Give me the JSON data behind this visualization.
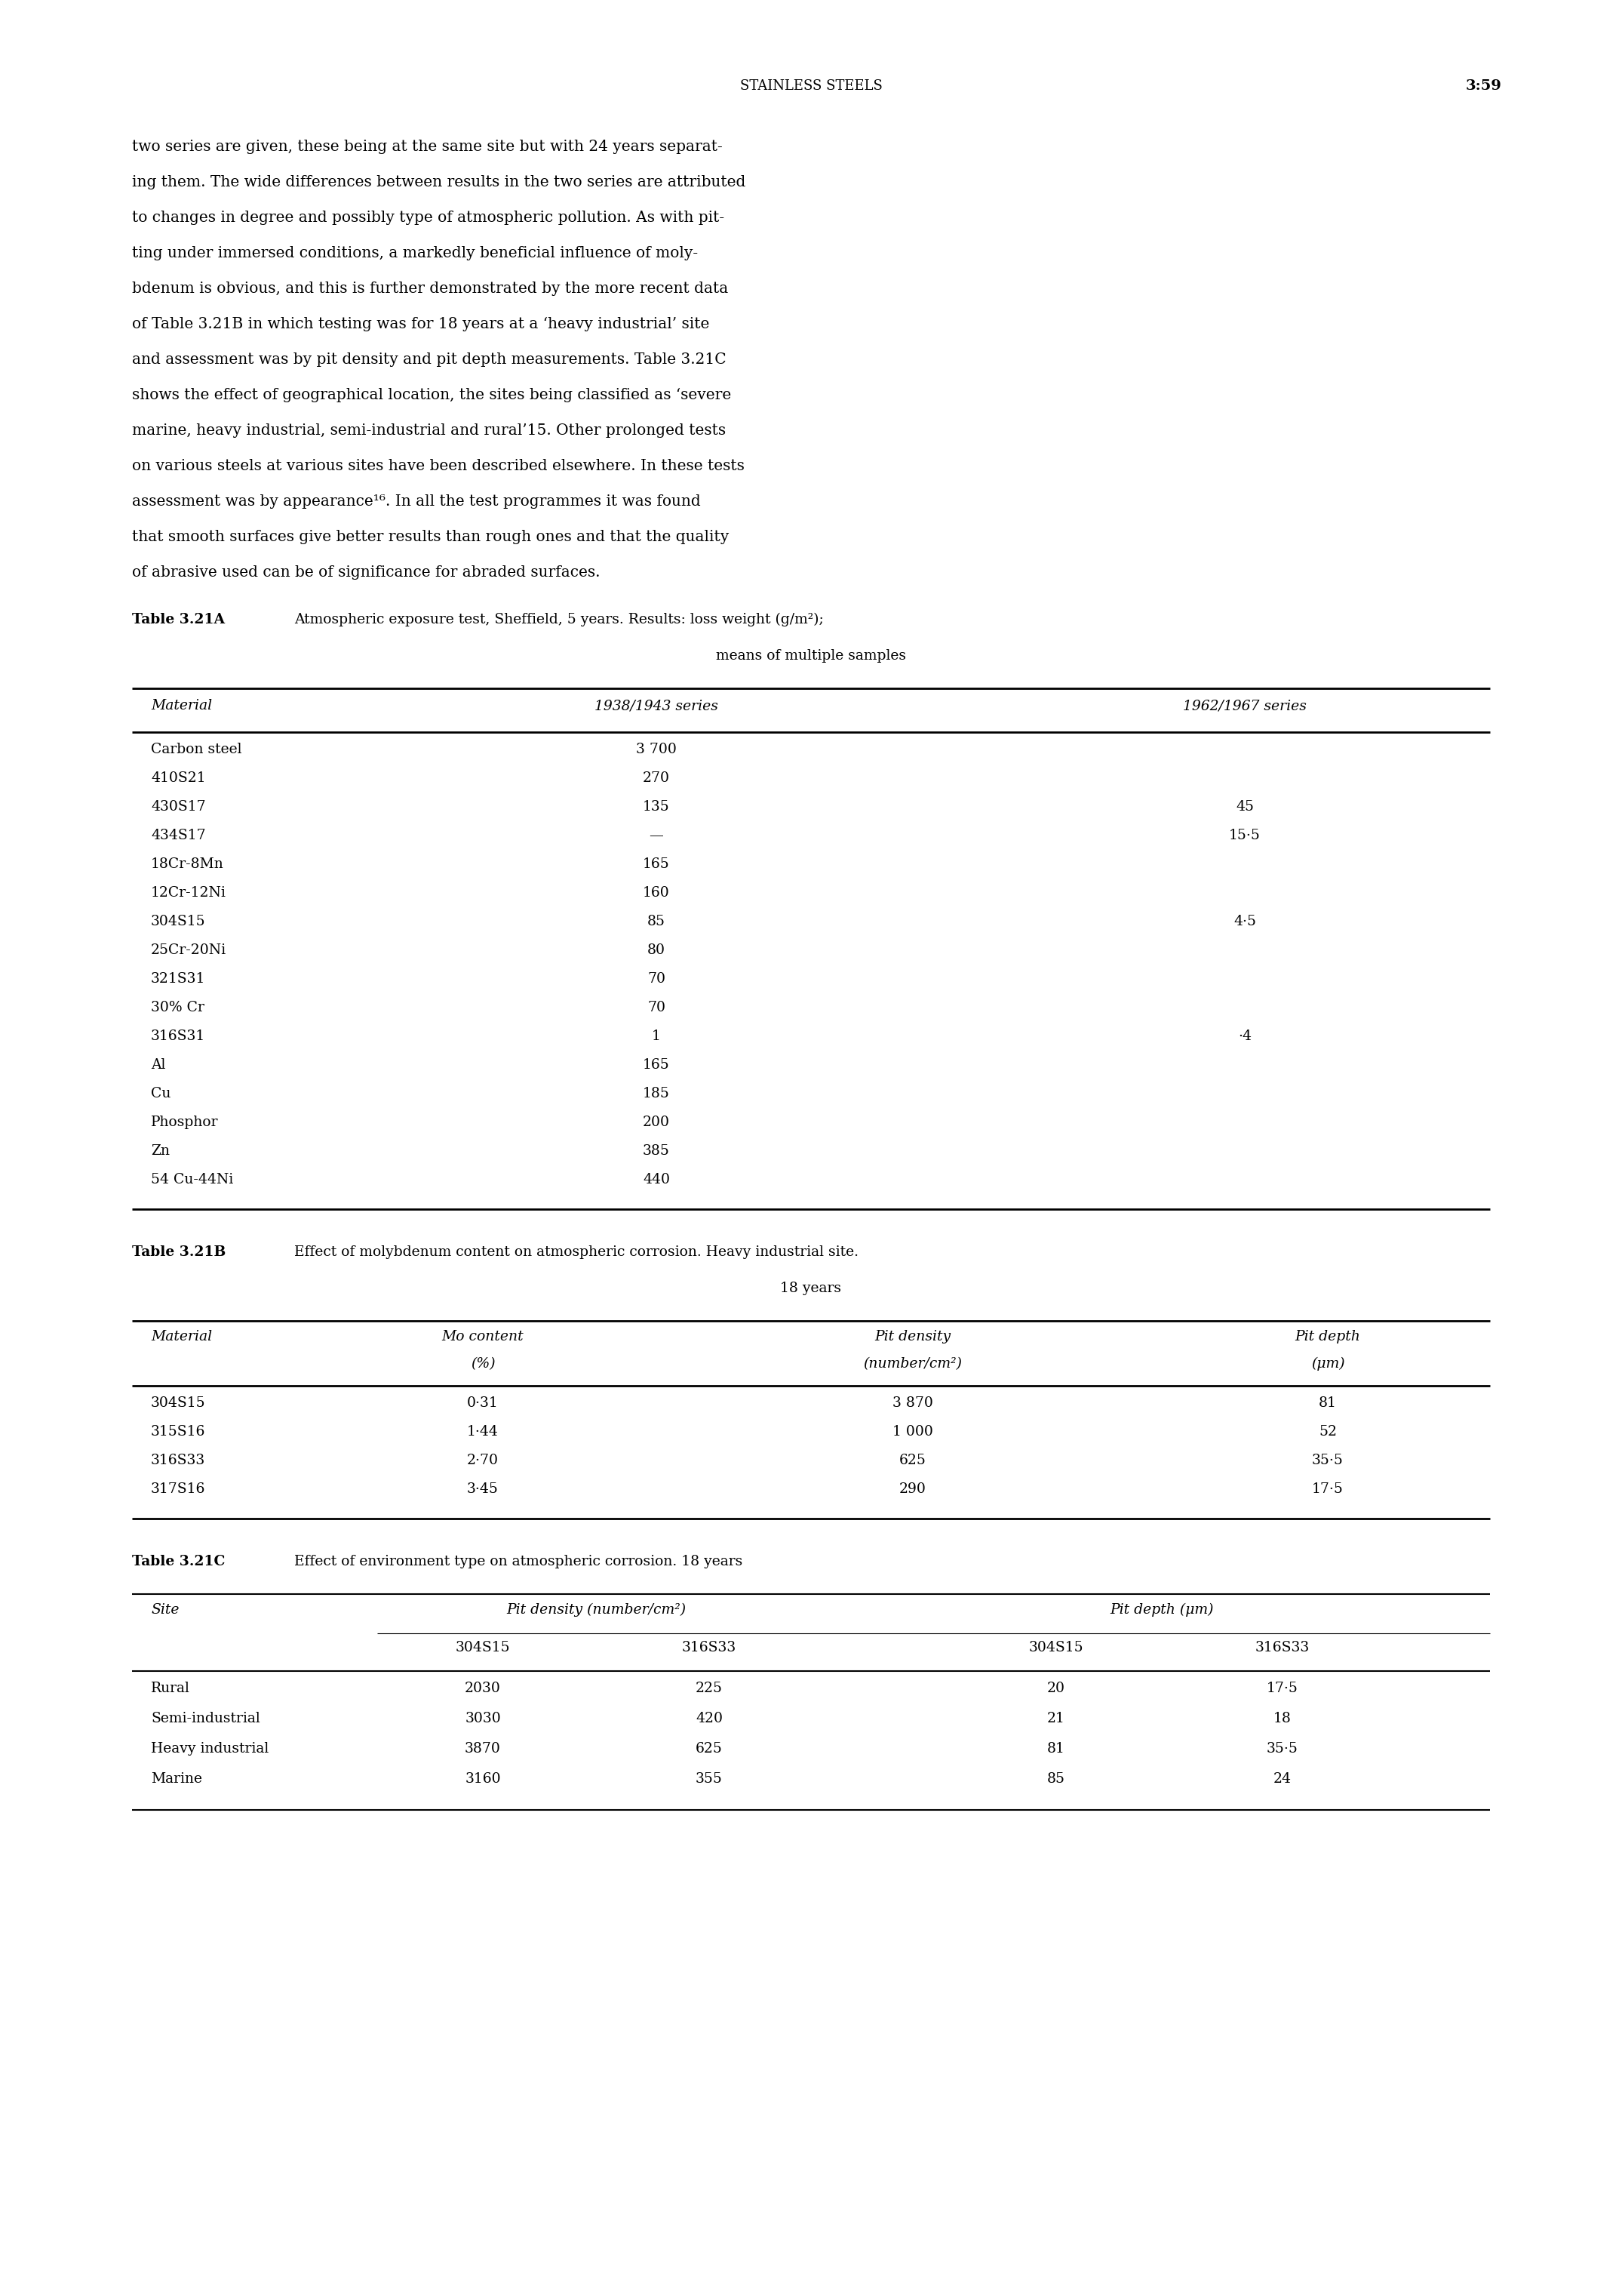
{
  "page_header_left": "STAINLESS STEELS",
  "page_header_right": "3:59",
  "body_text": [
    "two series are given, these being at the same site but with 24 years separat-",
    "ing them. The wide differences between results in the two series are attributed",
    "to changes in degree and possibly type of atmospheric pollution. As with pit-",
    "ting under immersed conditions, a markedly beneficial influence of moly-",
    "bdenum is obvious, and this is further demonstrated by the more recent data",
    "of Table 3.21B in which testing was for 18 years at a ‘heavy industrial’ site",
    "and assessment was by pit density and pit depth measurements. Table 3.21C",
    "shows the effect of geographical location, the sites being classified as ‘severe",
    "marine, heavy industrial, semi-industrial and rural’15. Other prolonged tests",
    "on various steels at various sites have been described elsewhere. In these tests",
    "assessment was by appearance¹⁶. In all the test programmes it was found",
    "that smooth surfaces give better results than rough ones and that the quality",
    "of abrasive used can be of significance for abraded surfaces."
  ],
  "tableA_title": "Table 3.21A",
  "tableA_subtitle1": "Atmospheric exposure test, Sheffield, 5 years. Results: loss weight (g/m²);",
  "tableA_subtitle2": "means of multiple samples",
  "tableA_col1_header": "Material",
  "tableA_col2_header": "1938/1943 series",
  "tableA_col3_header": "1962/1967 series",
  "tableA_rows": [
    [
      "Carbon steel",
      "3 700",
      ""
    ],
    [
      "410S21",
      "270",
      ""
    ],
    [
      "430S17",
      "135",
      "45"
    ],
    [
      "434S17",
      "—",
      "15·5"
    ],
    [
      "18Cr-8Mn",
      "165",
      ""
    ],
    [
      "12Cr-12Ni",
      "160",
      ""
    ],
    [
      "304S15",
      "85",
      "4·5"
    ],
    [
      "25Cr-20Ni",
      "80",
      ""
    ],
    [
      "321S31",
      "70",
      ""
    ],
    [
      "30% Cr",
      "70",
      ""
    ],
    [
      "316S31",
      "1",
      "·4"
    ],
    [
      "Al",
      "165",
      ""
    ],
    [
      "Cu",
      "185",
      ""
    ],
    [
      "Phosphor",
      "200",
      ""
    ],
    [
      "Zn",
      "385",
      ""
    ],
    [
      "54 Cu-44Ni",
      "440",
      ""
    ]
  ],
  "tableB_title": "Table 3.21B",
  "tableB_subtitle1": "Effect of molybdenum content on atmospheric corrosion. Heavy industrial site.",
  "tableB_subtitle2": "18 years",
  "tableB_col1_header": "Material",
  "tableB_col2_header_line1": "Mo content",
  "tableB_col2_header_line2": "(%)",
  "tableB_col3_header_line1": "Pit density",
  "tableB_col3_header_line2": "(number/cm²)",
  "tableB_col4_header_line1": "Pit depth",
  "tableB_col4_header_line2": "(μm)",
  "tableB_rows": [
    [
      "304S15",
      "0·31",
      "3 870",
      "81"
    ],
    [
      "315S16",
      "1·44",
      "1 000",
      "52"
    ],
    [
      "316S33",
      "2·70",
      "625",
      "35·5"
    ],
    [
      "317S16",
      "3·45",
      "290",
      "17·5"
    ]
  ],
  "tableC_title": "Table 3.21C",
  "tableC_subtitle": "Effect of environment type on atmospheric corrosion. 18 years",
  "tableC_col1_header": "Site",
  "tableC_col2_header": "Pit density (number/cm²)",
  "tableC_col3_header": "Pit depth (μm)",
  "tableC_subcol_headers": [
    "304S15",
    "316S33",
    "304S15",
    "316S33"
  ],
  "tableC_rows": [
    [
      "Rural",
      "2030",
      "225",
      "20",
      "17·5"
    ],
    [
      "Semi-industrial",
      "3030",
      "420",
      "21",
      "18"
    ],
    [
      "Heavy industrial",
      "3870",
      "625",
      "81",
      "35·5"
    ],
    [
      "Marine",
      "3160",
      "355",
      "85",
      "24"
    ]
  ],
  "bg_color": "#ffffff",
  "text_color": "#000000"
}
